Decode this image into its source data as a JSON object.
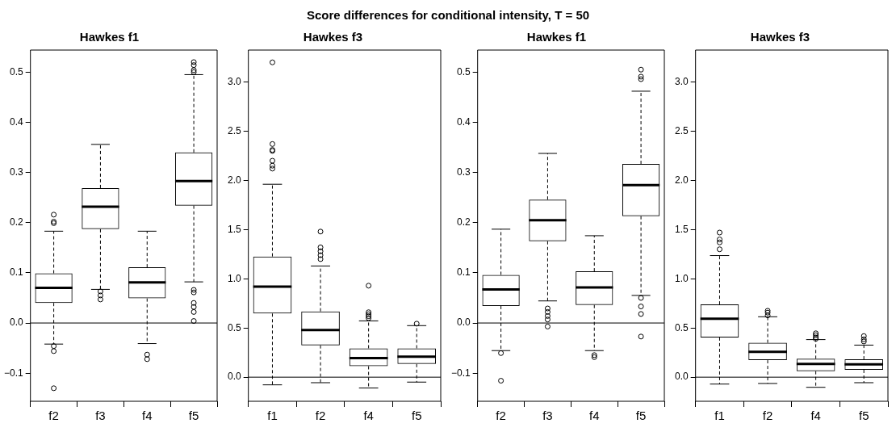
{
  "chart_data": [
    {
      "type": "other",
      "title": "Score differences for conditional intensity, T = 50"
    },
    {
      "type": "box",
      "title": "Hawkes f1",
      "categories": [
        "f2",
        "f3",
        "f4",
        "f5"
      ],
      "ylim": [
        -0.156,
        0.544
      ],
      "yticks": [
        {
          "value": -0.1,
          "label": "−0.1"
        },
        {
          "value": 0,
          "label": "0.0"
        },
        {
          "value": 0.1,
          "label": "0.1"
        },
        {
          "value": 0.2,
          "label": "0.2"
        },
        {
          "value": 0.3,
          "label": "0.3"
        },
        {
          "value": 0.4,
          "label": "0.4"
        },
        {
          "value": 0.5,
          "label": "0.5"
        }
      ],
      "grid": false,
      "ref_lines": [
        {
          "axis": "y",
          "value": 0,
          "color": "#000000"
        }
      ],
      "boxes": [
        {
          "low": -0.042,
          "q1": 0.04,
          "median": 0.07,
          "q3": 0.099,
          "high": 0.183,
          "outliers": [
            0.216,
            0.202,
            0.199,
            -0.046,
            -0.056,
            -0.13
          ]
        },
        {
          "low": 0.067,
          "q1": 0.187,
          "median": 0.232,
          "q3": 0.269,
          "high": 0.356,
          "outliers": [
            0.063,
            0.055,
            0.047
          ]
        },
        {
          "low": -0.041,
          "q1": 0.049,
          "median": 0.081,
          "q3": 0.111,
          "high": 0.183,
          "outliers": [
            -0.063,
            -0.072
          ]
        },
        {
          "low": 0.082,
          "q1": 0.234,
          "median": 0.283,
          "q3": 0.34,
          "high": 0.495,
          "outliers": [
            0.52,
            0.514,
            0.504,
            0.5,
            0.066,
            0.061,
            0.04,
            0.032,
            0.022,
            0.004
          ]
        }
      ]
    },
    {
      "type": "box",
      "title": "Hawkes f3",
      "categories": [
        "f1",
        "f2",
        "f4",
        "f5"
      ],
      "ylim": [
        -0.245,
        3.325
      ],
      "yticks": [
        {
          "value": 0,
          "label": "0.0"
        },
        {
          "value": 0.5,
          "label": "0.5"
        },
        {
          "value": 1,
          "label": "1.0"
        },
        {
          "value": 1.5,
          "label": "1.5"
        },
        {
          "value": 2,
          "label": "2.0"
        },
        {
          "value": 2.5,
          "label": "2.5"
        },
        {
          "value": 3,
          "label": "3.0"
        }
      ],
      "grid": false,
      "ref_lines": [
        {
          "axis": "y",
          "value": 0,
          "color": "#000000"
        }
      ],
      "boxes": [
        {
          "low": -0.078,
          "q1": 0.647,
          "median": 0.92,
          "q3": 1.227,
          "high": 1.961,
          "outliers": [
            3.2,
            2.37,
            2.31,
            2.3,
            2.2,
            2.15,
            2.12
          ]
        },
        {
          "low": -0.056,
          "q1": 0.324,
          "median": 0.48,
          "q3": 0.669,
          "high": 1.13,
          "outliers": [
            1.48,
            1.32,
            1.28,
            1.24,
            1.2
          ]
        },
        {
          "low": -0.11,
          "q1": 0.112,
          "median": 0.195,
          "q3": 0.293,
          "high": 0.572,
          "outliers": [
            0.93,
            0.66,
            0.64,
            0.62,
            0.6
          ]
        },
        {
          "low": -0.05,
          "q1": 0.134,
          "median": 0.209,
          "q3": 0.293,
          "high": 0.524,
          "outliers": [
            0.544
          ]
        }
      ]
    },
    {
      "type": "box",
      "title": "Hawkes f1",
      "categories": [
        "f2",
        "f3",
        "f4",
        "f5"
      ],
      "ylim": [
        -0.156,
        0.544
      ],
      "yticks": [
        {
          "value": -0.1,
          "label": "−0.1"
        },
        {
          "value": 0,
          "label": "0.0"
        },
        {
          "value": 0.1,
          "label": "0.1"
        },
        {
          "value": 0.2,
          "label": "0.2"
        },
        {
          "value": 0.3,
          "label": "0.3"
        },
        {
          "value": 0.4,
          "label": "0.4"
        },
        {
          "value": 0.5,
          "label": "0.5"
        }
      ],
      "grid": false,
      "ref_lines": [
        {
          "axis": "y",
          "value": 0,
          "color": "#000000"
        }
      ],
      "boxes": [
        {
          "low": -0.055,
          "q1": 0.034,
          "median": 0.067,
          "q3": 0.096,
          "high": 0.187,
          "outliers": [
            -0.06,
            -0.115
          ]
        },
        {
          "low": 0.044,
          "q1": 0.163,
          "median": 0.205,
          "q3": 0.246,
          "high": 0.338,
          "outliers": [
            0.029,
            0.022,
            0.014,
            0.007,
            -0.007
          ]
        },
        {
          "low": -0.055,
          "q1": 0.036,
          "median": 0.071,
          "q3": 0.103,
          "high": 0.174,
          "outliers": [
            -0.064,
            -0.068
          ]
        },
        {
          "low": 0.055,
          "q1": 0.213,
          "median": 0.275,
          "q3": 0.317,
          "high": 0.462,
          "outliers": [
            0.505,
            0.491,
            0.486,
            0.05,
            0.033,
            0.018,
            -0.027
          ]
        }
      ]
    },
    {
      "type": "box",
      "title": "Hawkes f3",
      "categories": [
        "f1",
        "f2",
        "f4",
        "f5"
      ],
      "ylim": [
        -0.245,
        3.325
      ],
      "yticks": [
        {
          "value": 0,
          "label": "0.0"
        },
        {
          "value": 0.5,
          "label": "0.5"
        },
        {
          "value": 1,
          "label": "1.0"
        },
        {
          "value": 1.5,
          "label": "1.5"
        },
        {
          "value": 2,
          "label": "2.0"
        },
        {
          "value": 2.5,
          "label": "2.5"
        },
        {
          "value": 3,
          "label": "3.0"
        }
      ],
      "grid": false,
      "ref_lines": [
        {
          "axis": "y",
          "value": 0,
          "color": "#000000"
        }
      ],
      "boxes": [
        {
          "low": -0.07,
          "q1": 0.404,
          "median": 0.594,
          "q3": 0.739,
          "high": 1.236,
          "outliers": [
            1.47,
            1.4,
            1.37,
            1.3
          ]
        },
        {
          "low": -0.064,
          "q1": 0.173,
          "median": 0.257,
          "q3": 0.349,
          "high": 0.614,
          "outliers": [
            0.675,
            0.656,
            0.628
          ]
        },
        {
          "low": -0.103,
          "q1": 0.061,
          "median": 0.134,
          "q3": 0.187,
          "high": 0.382,
          "outliers": [
            0.446,
            0.427,
            0.404,
            0.39
          ]
        },
        {
          "low": -0.056,
          "q1": 0.075,
          "median": 0.131,
          "q3": 0.181,
          "high": 0.326,
          "outliers": [
            0.418,
            0.385,
            0.363
          ]
        }
      ]
    }
  ]
}
